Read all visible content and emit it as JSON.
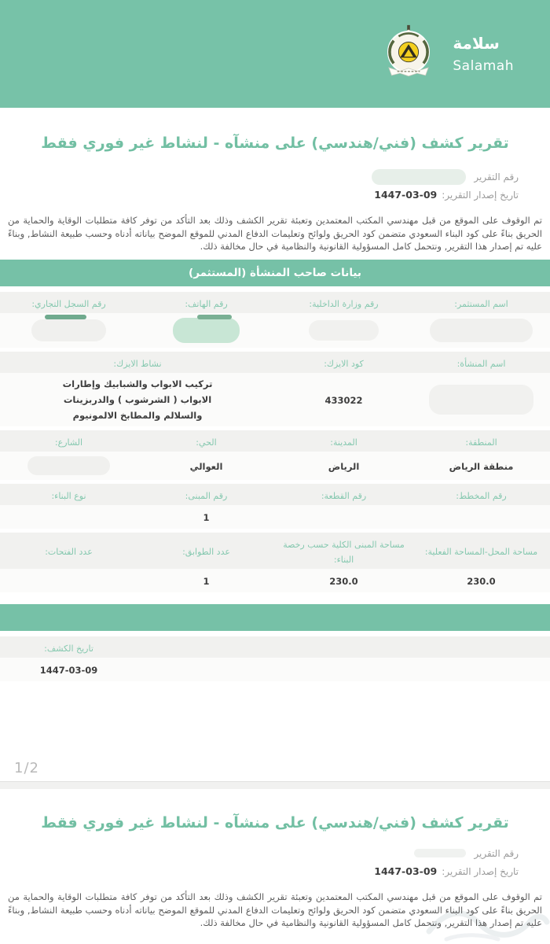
{
  "header": {
    "brand_ar": "سلامة",
    "brand_en": "Salamah",
    "logo": "civil-defense-emblem"
  },
  "colors": {
    "header_teal": "#77c2a8",
    "section_teal": "#76c1a7",
    "title_teal": "#72bfa3",
    "label_teal": "#85c8af",
    "redaction_green": "#c8e6d5"
  },
  "report": {
    "title": "تقرير كشف (فني/هندسي) على منشآه - لنشاط غير فوري فقط",
    "report_number_label": "رقم التقرير",
    "issue_date_label": "تاريخ إصدار التقرير:",
    "issue_date_value": "1447-03-09",
    "intro_paragraph": "تم الوقوف على الموقع من قبل مهندسي المكتب المعتمدين وتعبئة تقرير الكشف وذلك بعد التأكد من توفر كافة متطلبات الوقاية والحماية من الحريق بناءً على كود البناء السعودي متضمن كود الحريق ولوائح وتعليمات الدفاع المدني للموقع الموضح بياناته أدناه وحسب طبيعة النشاط, وبناءً عليه تم إصدار هذا التقرير, ونتحمل كامل المسؤولية القانونية والنظامية في حال مخالفة ذلك."
  },
  "page1": {
    "section_title": "بيانات صاحب المنشأة (المستثمر)",
    "groups": [
      {
        "fields": [
          {
            "label": "اسم المستثمر:",
            "redacted": "gray-lg"
          },
          {
            "label": "رقم وزارة الداخلية:",
            "redacted": "gray-sm"
          },
          {
            "label": "رقم الهاتف:",
            "redacted": "green"
          },
          {
            "label": "رقم السجل التجاري:",
            "redacted": "gray-pill"
          }
        ]
      },
      {
        "fields": [
          {
            "label": "اسم المنشأة:",
            "redacted": "gray-xl"
          },
          {
            "label": "كود الايزك:",
            "value": "433022",
            "numeric": true
          },
          {
            "label": "نشاط الايزك:",
            "value": "تركيب الابواب والشبابيك وإطارات الابواب ( الشرشوب ) والدربزينات والسلالم والمطابخ الالمونيوم",
            "span": 2,
            "narrow": true
          }
        ]
      },
      {
        "fields": [
          {
            "label": "المنطقة:",
            "value": "منطقة الرياض"
          },
          {
            "label": "المدينة:",
            "value": "الرياض"
          },
          {
            "label": "الحي:",
            "value": "العوالي"
          },
          {
            "label": "الشارع:",
            "redacted": "gray-med"
          }
        ]
      },
      {
        "fields": [
          {
            "label": "رقم المخطط:"
          },
          {
            "label": "رقم القطعة:"
          },
          {
            "label": "رقم المبنى:",
            "value": "1",
            "numeric": true
          },
          {
            "label": "نوع البناء:"
          }
        ]
      },
      {
        "fields": [
          {
            "label": "مساحة المحل-المساحة الفعلية:",
            "value": "230.0",
            "numeric": true
          },
          {
            "label": "مساحة المبنى الكلية حسب رخصة البناء:",
            "value": "230.0",
            "numeric": true
          },
          {
            "label": "عدد الطوابق:",
            "value": "1",
            "numeric": true
          },
          {
            "label": "عدد الفتحات:"
          }
        ]
      }
    ],
    "inspection_group": {
      "fields": [
        {
          "label": ""
        },
        {
          "label": ""
        },
        {
          "label": ""
        },
        {
          "label": "تاريخ الكشف:",
          "value": "1447-03-09",
          "numeric": true
        }
      ]
    },
    "page_indicator": "1/2"
  }
}
